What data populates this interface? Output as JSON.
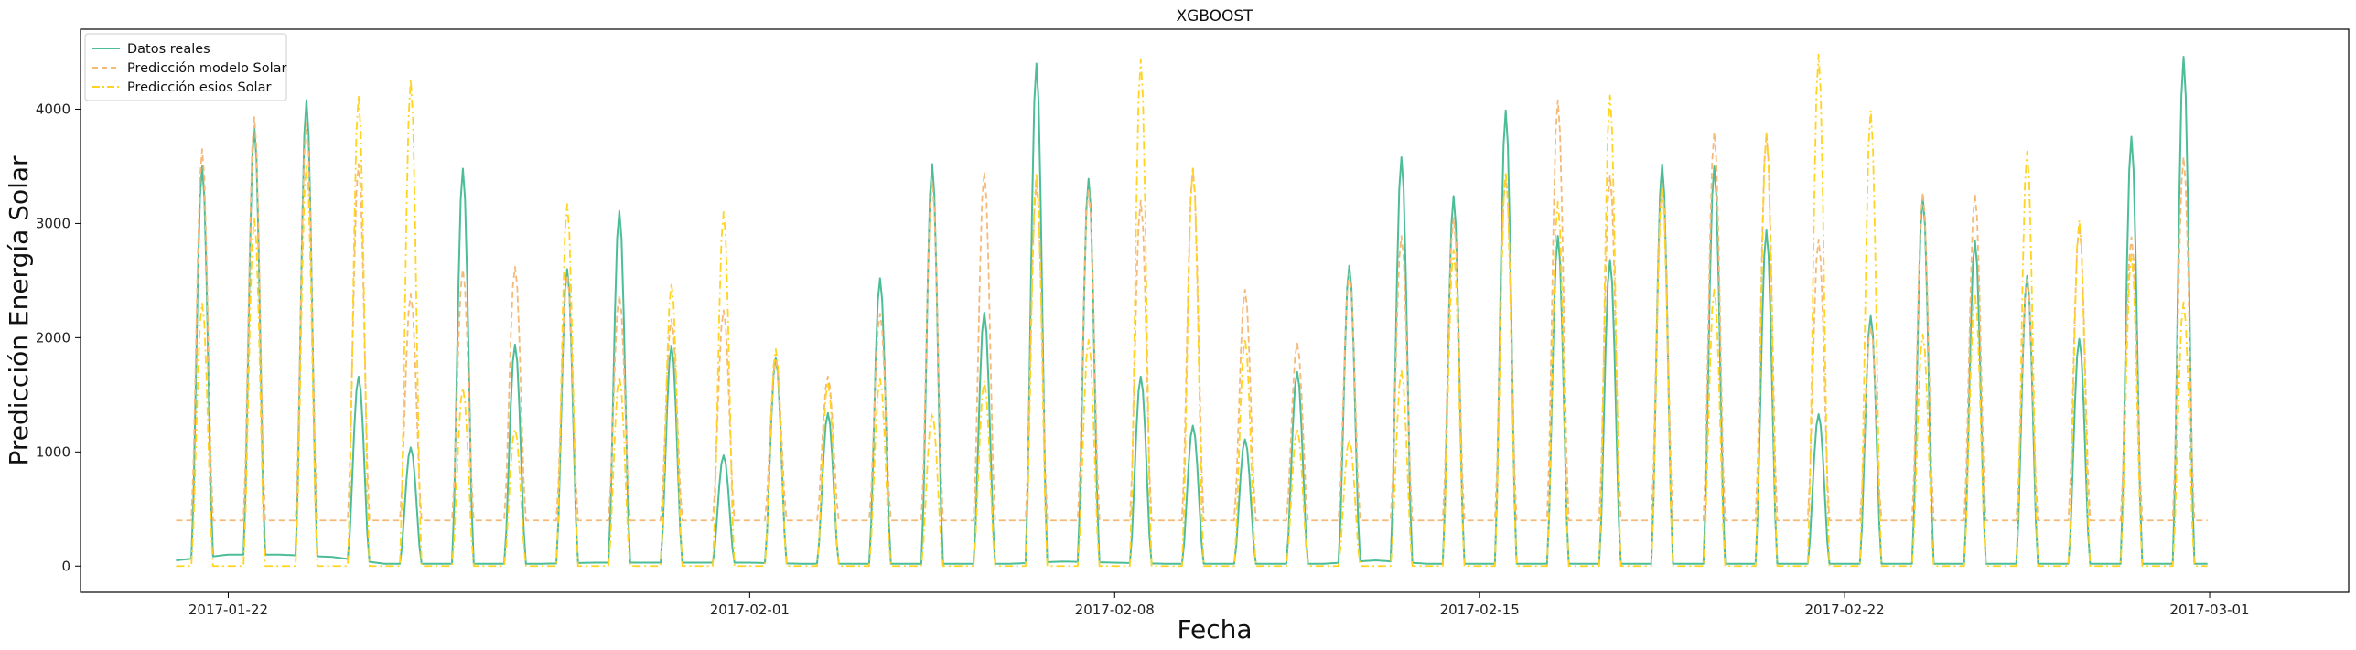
{
  "chart_data": {
    "type": "line",
    "title": "XGBOOST",
    "xlabel": "Fecha",
    "ylabel": "Predicción Energía Solar",
    "x_start": "2017-01-21 00:00",
    "x_end": "2017-02-28 23:00",
    "xlim": [
      "2017-01-19 04:00",
      "2017-03-03 16:00"
    ],
    "ylim": [
      -230,
      4700
    ],
    "xticks": [
      "2017-01-22",
      "2017-02-01",
      "2017-02-08",
      "2017-02-15",
      "2017-02-22",
      "2017-03-01"
    ],
    "yticks": [
      0,
      1000,
      2000,
      3000,
      4000
    ],
    "grid": false,
    "legend_position": "top-left",
    "series": [
      {
        "name": "Datos reales",
        "color": "#4dbd98",
        "style": "solid",
        "night_base": [
          50,
          100,
          100,
          80,
          20,
          20,
          20,
          20,
          30,
          30,
          30,
          30,
          20,
          20,
          20,
          20,
          20,
          40,
          30,
          20,
          20,
          20,
          20,
          50,
          20,
          20,
          20,
          20,
          20,
          20,
          20,
          20,
          20,
          20,
          20,
          20,
          20,
          20,
          20,
          20
        ],
        "daily_peak": [
          3500,
          3850,
          4080,
          1660,
          1040,
          3480,
          1940,
          2600,
          3110,
          1930,
          970,
          1820,
          1340,
          2520,
          3520,
          2220,
          4400,
          3390,
          1660,
          1230,
          1110,
          1700,
          2630,
          3580,
          3240,
          3990,
          2890,
          2680,
          3520,
          3500,
          2940,
          1330,
          2190,
          3230,
          2850,
          2540,
          1990,
          3760,
          4460
        ]
      },
      {
        "name": "Predicción modelo Solar",
        "color": "#f5b978",
        "style": "dashed",
        "night_base": [
          400,
          400,
          400,
          400,
          400,
          400,
          400,
          400,
          400,
          400,
          400,
          400,
          400,
          400,
          400,
          400,
          400,
          400,
          400,
          400,
          400,
          400,
          400,
          400,
          400,
          400,
          400,
          400,
          400,
          400,
          400,
          400,
          400,
          400,
          400,
          400,
          400,
          400,
          400,
          400
        ],
        "daily_peak": [
          3650,
          3930,
          3880,
          3520,
          2380,
          2600,
          2620,
          2550,
          2370,
          2160,
          2240,
          1800,
          1660,
          2210,
          3360,
          3450,
          3350,
          3300,
          3200,
          3480,
          2420,
          1950,
          2560,
          2890,
          3050,
          3430,
          4080,
          3420,
          3350,
          3800,
          3790,
          2860,
          2100,
          3270,
          3260,
          2510,
          2980,
          2880,
          3580
        ]
      },
      {
        "name": "Predicción esios Solar",
        "color": "#ffd31f",
        "style": "dashdot",
        "night_base": [
          0,
          0,
          0,
          0,
          0,
          0,
          0,
          0,
          0,
          0,
          0,
          0,
          0,
          0,
          0,
          0,
          0,
          0,
          0,
          0,
          0,
          0,
          0,
          0,
          0,
          0,
          0,
          0,
          0,
          0,
          0,
          0,
          0,
          0,
          0,
          0,
          0,
          0,
          0,
          0
        ],
        "daily_peak": [
          2300,
          3050,
          3520,
          4120,
          4260,
          1560,
          1200,
          3170,
          1660,
          2480,
          3100,
          1900,
          1610,
          1640,
          1340,
          1620,
          3440,
          1980,
          4440,
          3480,
          1990,
          1200,
          1110,
          1710,
          2770,
          3450,
          3190,
          4120,
          3320,
          2430,
          3790,
          4480,
          3990,
          2030,
          2380,
          3630,
          3030,
          2730,
          2310
        ]
      }
    ]
  }
}
